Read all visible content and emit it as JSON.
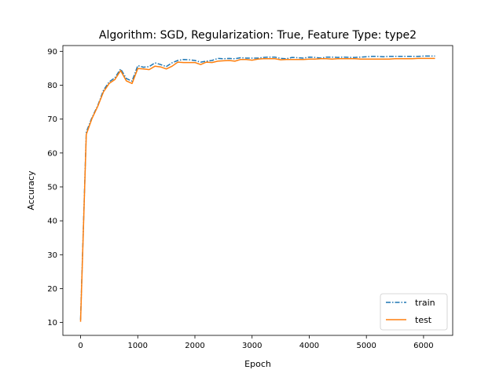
{
  "chart_data": {
    "type": "line",
    "title": "Algorithm: SGD, Regularization: True, Feature Type: type2",
    "xlabel": "Epoch",
    "ylabel": "Accuracy",
    "xlim": [
      -310,
      6510
    ],
    "ylim": [
      6.2,
      91.7
    ],
    "xticks": [
      0,
      1000,
      2000,
      3000,
      4000,
      5000,
      6000
    ],
    "yticks": [
      10,
      20,
      30,
      40,
      50,
      60,
      70,
      80,
      90
    ],
    "legend_position": "lower-right",
    "grid": false,
    "series": [
      {
        "name": "train",
        "style": "dashdot",
        "color": "#1f77b4",
        "x": [
          0,
          100,
          200,
          300,
          400,
          500,
          600,
          700,
          800,
          900,
          1000,
          1100,
          1200,
          1300,
          1400,
          1500,
          1600,
          1700,
          1800,
          1900,
          2000,
          2100,
          2200,
          2300,
          2400,
          2500,
          2600,
          2700,
          2800,
          2900,
          3000,
          3100,
          3200,
          3300,
          3400,
          3500,
          3600,
          3700,
          3800,
          3900,
          4000,
          4100,
          4200,
          4300,
          4400,
          4500,
          4600,
          4700,
          4800,
          4900,
          5000,
          5100,
          5200,
          5300,
          5400,
          5500,
          5600,
          5700,
          5800,
          5900,
          6000,
          6100,
          6200
        ],
        "y": [
          10.8,
          66.2,
          70.5,
          74.0,
          78.5,
          81.0,
          82.2,
          84.8,
          82.0,
          81.2,
          85.8,
          85.3,
          85.5,
          86.6,
          86.1,
          85.5,
          86.6,
          87.3,
          87.6,
          87.5,
          87.3,
          86.8,
          87.1,
          87.3,
          87.9,
          87.8,
          87.9,
          87.8,
          88.1,
          88.0,
          88.0,
          88.0,
          88.2,
          88.3,
          88.3,
          87.9,
          87.8,
          88.2,
          88.1,
          88.0,
          88.3,
          88.2,
          88.0,
          88.3,
          88.3,
          88.2,
          88.3,
          88.2,
          88.2,
          88.3,
          88.4,
          88.5,
          88.5,
          88.4,
          88.5,
          88.5,
          88.5,
          88.5,
          88.5,
          88.5,
          88.6,
          88.6,
          88.6
        ]
      },
      {
        "name": "test",
        "style": "solid",
        "color": "#ff7f0e",
        "x": [
          0,
          100,
          200,
          300,
          400,
          500,
          600,
          700,
          800,
          900,
          1000,
          1100,
          1200,
          1300,
          1400,
          1500,
          1600,
          1700,
          1800,
          1900,
          2000,
          2100,
          2200,
          2300,
          2400,
          2500,
          2600,
          2700,
          2800,
          2900,
          3000,
          3100,
          3200,
          3300,
          3400,
          3500,
          3600,
          3700,
          3800,
          3900,
          4000,
          4100,
          4200,
          4300,
          4400,
          4500,
          4600,
          4700,
          4800,
          4900,
          5000,
          5100,
          5200,
          5300,
          5400,
          5500,
          5600,
          5700,
          5800,
          5900,
          6000,
          6100,
          6200
        ],
        "y": [
          10.2,
          65.5,
          70.2,
          73.8,
          78.0,
          80.5,
          81.7,
          84.3,
          81.3,
          80.5,
          84.9,
          84.8,
          84.6,
          85.6,
          85.4,
          84.8,
          85.6,
          86.8,
          86.7,
          86.7,
          86.7,
          86.1,
          86.8,
          86.7,
          87.1,
          87.2,
          87.3,
          87.1,
          87.6,
          87.6,
          87.4,
          87.7,
          87.8,
          87.8,
          87.8,
          87.5,
          87.6,
          87.6,
          87.6,
          87.6,
          87.7,
          87.7,
          87.8,
          87.8,
          87.7,
          87.8,
          87.8,
          87.8,
          87.8,
          87.7,
          87.7,
          87.7,
          87.7,
          87.7,
          87.7,
          87.8,
          87.8,
          87.8,
          87.8,
          87.9,
          87.9,
          87.9,
          87.9
        ]
      }
    ]
  }
}
